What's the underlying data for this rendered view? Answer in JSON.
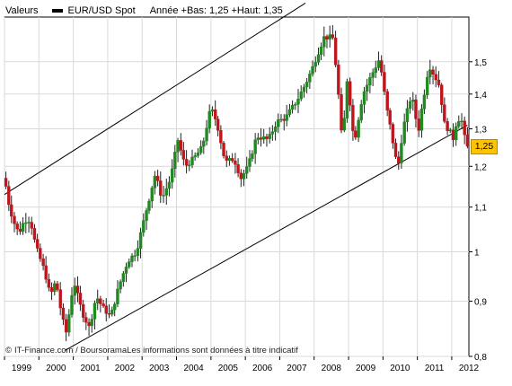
{
  "header": {
    "label": "Valeurs",
    "series_label": "EUR/USD Spot",
    "stats": "Année +Bas: 1,25 +Haut: 1,35"
  },
  "credit": "IT-Finance.com / BoursoramaLes informations sont données à titre indicatif",
  "last_price": "1,25",
  "colors": {
    "up_candle": "#1f8a1f",
    "down_candle": "#c0141c",
    "last_price_tag": "#ffc400",
    "grid": "#d9d9d9",
    "channel_lines": "#000000"
  },
  "chart_data": {
    "type": "candlestick",
    "title": "",
    "xlabel": "",
    "ylabel": "",
    "y_scale": "log",
    "ylim": [
      0.8,
      1.65
    ],
    "xlim": [
      "1999-01-01",
      "2012-07-01"
    ],
    "y_ticks": [
      0.8,
      0.9,
      1,
      1.1,
      1.2,
      1.3,
      1.4,
      1.5
    ],
    "y_tick_labels": [
      "0,8",
      "0,9",
      "1",
      "1,1",
      "1,2",
      "1,3",
      "1,4",
      "1,5"
    ],
    "x_ticks": [
      "1999",
      "2000",
      "2001",
      "2002",
      "2003",
      "2004",
      "2005",
      "2006",
      "2007",
      "2008",
      "2009",
      "2010",
      "2011",
      "2012"
    ],
    "grid": true,
    "channel": {
      "upper": [
        [
          "1999-01-01",
          1.13
        ],
        [
          "2007-10-01",
          1.7
        ]
      ],
      "lower": [
        [
          "2000-10-01",
          0.81
        ],
        [
          "2012-06-15",
          1.31
        ]
      ]
    },
    "close_path": [
      [
        "1999-01-01",
        1.17
      ],
      [
        "1999-02-15",
        1.11
      ],
      [
        "1999-04-01",
        1.07
      ],
      [
        "1999-06-01",
        1.04
      ],
      [
        "1999-08-01",
        1.07
      ],
      [
        "1999-10-01",
        1.07
      ],
      [
        "1999-12-01",
        1.01
      ],
      [
        "2000-03-01",
        0.96
      ],
      [
        "2000-05-01",
        0.91
      ],
      [
        "2000-07-01",
        0.94
      ],
      [
        "2000-09-01",
        0.87
      ],
      [
        "2000-10-20",
        0.84
      ],
      [
        "2001-01-05",
        0.94
      ],
      [
        "2001-04-01",
        0.88
      ],
      [
        "2001-06-20",
        0.85
      ],
      [
        "2001-09-01",
        0.91
      ],
      [
        "2001-11-01",
        0.89
      ],
      [
        "2002-02-01",
        0.87
      ],
      [
        "2002-05-01",
        0.93
      ],
      [
        "2002-08-01",
        0.98
      ],
      [
        "2002-11-01",
        1.0
      ],
      [
        "2003-02-01",
        1.08
      ],
      [
        "2003-05-20",
        1.18
      ],
      [
        "2003-08-01",
        1.12
      ],
      [
        "2003-11-01",
        1.17
      ],
      [
        "2004-01-15",
        1.27
      ],
      [
        "2004-04-01",
        1.2
      ],
      [
        "2004-07-01",
        1.22
      ],
      [
        "2004-10-01",
        1.25
      ],
      [
        "2004-12-30",
        1.36
      ],
      [
        "2005-03-01",
        1.32
      ],
      [
        "2005-06-01",
        1.21
      ],
      [
        "2005-09-01",
        1.22
      ],
      [
        "2005-11-15",
        1.17
      ],
      [
        "2006-02-01",
        1.2
      ],
      [
        "2006-05-01",
        1.28
      ],
      [
        "2006-09-01",
        1.27
      ],
      [
        "2006-12-01",
        1.32
      ],
      [
        "2007-03-01",
        1.33
      ],
      [
        "2007-07-01",
        1.38
      ],
      [
        "2007-10-01",
        1.43
      ],
      [
        "2007-12-01",
        1.47
      ],
      [
        "2008-04-15",
        1.58
      ],
      [
        "2008-07-15",
        1.58
      ],
      [
        "2008-09-01",
        1.45
      ],
      [
        "2008-10-27",
        1.25
      ],
      [
        "2008-12-18",
        1.45
      ],
      [
        "2009-03-01",
        1.26
      ],
      [
        "2009-06-01",
        1.4
      ],
      [
        "2009-11-25",
        1.51
      ],
      [
        "2010-02-01",
        1.37
      ],
      [
        "2010-06-07",
        1.19
      ],
      [
        "2010-08-01",
        1.3
      ],
      [
        "2010-11-01",
        1.4
      ],
      [
        "2011-01-10",
        1.29
      ],
      [
        "2011-05-04",
        1.49
      ],
      [
        "2011-09-01",
        1.42
      ],
      [
        "2011-10-04",
        1.32
      ],
      [
        "2011-12-15",
        1.29
      ],
      [
        "2012-01-13",
        1.27
      ],
      [
        "2012-03-01",
        1.33
      ],
      [
        "2012-04-20",
        1.32
      ],
      [
        "2012-06-01",
        1.25
      ]
    ]
  }
}
